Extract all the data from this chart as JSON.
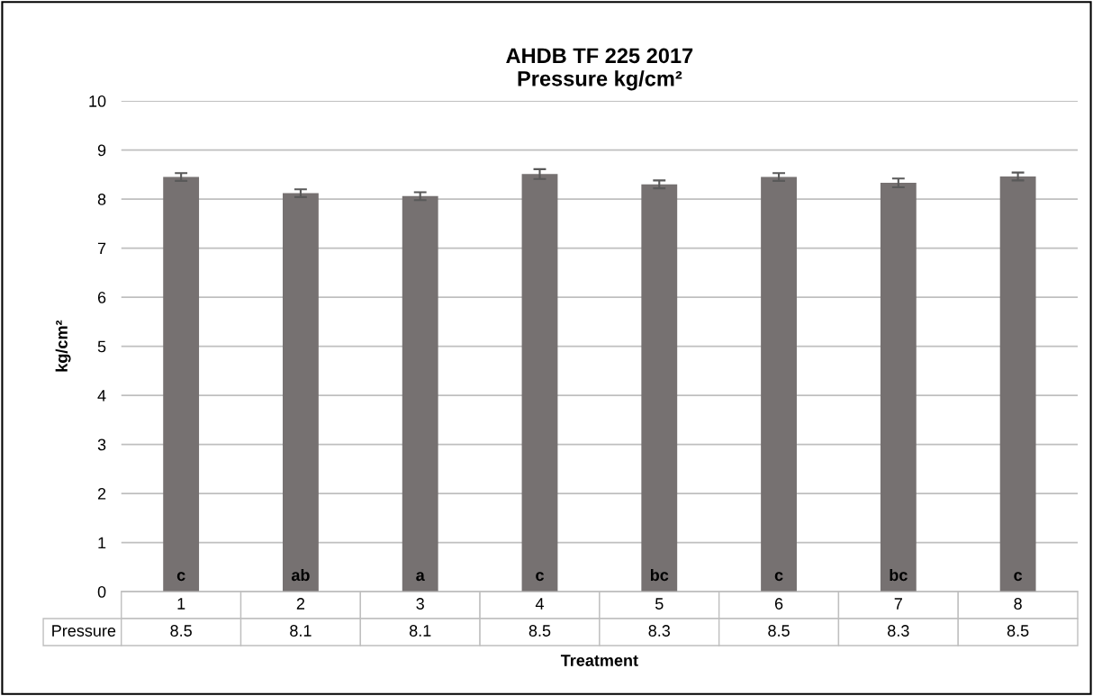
{
  "chart_data": {
    "type": "bar",
    "title": "AHDB TF 225 2017\nPressure kg/cm²",
    "xlabel": "Treatment",
    "ylabel": "kg/cm²",
    "categories": [
      "1",
      "2",
      "3",
      "4",
      "5",
      "6",
      "7",
      "8"
    ],
    "series": [
      {
        "name": "Pressure",
        "color": "#767171",
        "values": [
          8.45,
          8.12,
          8.06,
          8.51,
          8.3,
          8.45,
          8.33,
          8.46
        ],
        "errors": [
          0.08,
          0.08,
          0.08,
          0.1,
          0.08,
          0.08,
          0.09,
          0.08
        ],
        "value_labels": [
          "8.5",
          "8.1",
          "8.1",
          "8.5",
          "8.3",
          "8.5",
          "8.3",
          "8.5"
        ]
      }
    ],
    "annotations": [
      "c",
      "ab",
      "a",
      "c",
      "bc",
      "c",
      "bc",
      "c"
    ],
    "ylim": [
      0,
      10
    ],
    "yticks": [
      0,
      1,
      2,
      3,
      4,
      5,
      6,
      7,
      8,
      9,
      10
    ],
    "grid": "y",
    "legend": false
  }
}
